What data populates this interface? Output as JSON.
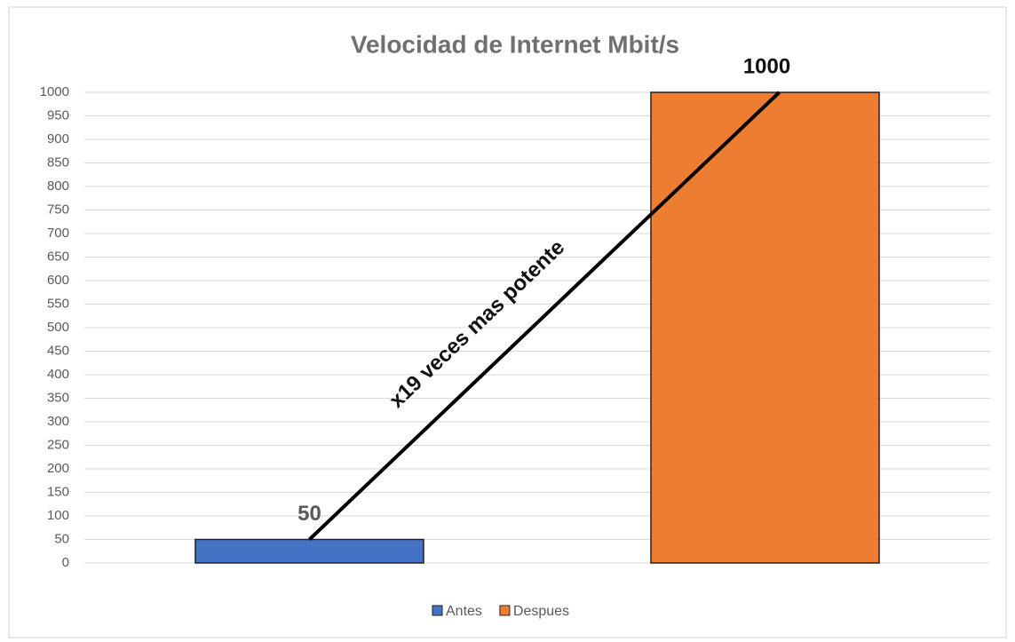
{
  "chart_data": {
    "type": "bar",
    "title": "Velocidad de Internet Mbit/s",
    "categories": [
      null
    ],
    "series": [
      {
        "name": "Antes",
        "color": "#4472c4",
        "values": [
          50
        ]
      },
      {
        "name": "Despues",
        "color": "#ed7d31",
        "values": [
          1000
        ]
      }
    ],
    "annotation": "x19 veces mas potente",
    "ylim": [
      0,
      1000
    ],
    "yticks": [
      0,
      50,
      100,
      150,
      200,
      250,
      300,
      350,
      400,
      450,
      500,
      550,
      600,
      650,
      700,
      750,
      800,
      850,
      900,
      950,
      1000
    ],
    "grid": true,
    "legend": "bottom"
  }
}
